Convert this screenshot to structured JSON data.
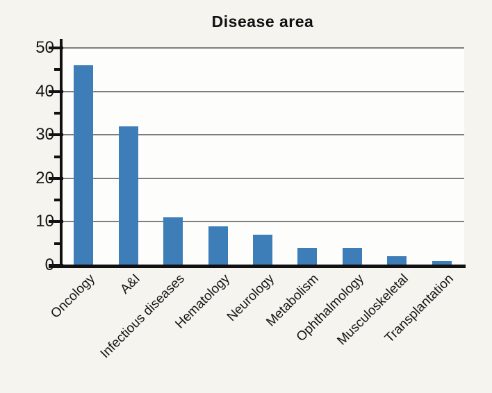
{
  "figure": {
    "background_color": "#f5f4ef",
    "plot_background_color": "#fdfdfb",
    "bar_color": "#3d7eb8",
    "gridline_color": "#7e7e7e",
    "axis_color": "#111111"
  },
  "chart_data": {
    "type": "bar",
    "title": "Disease area",
    "categories": [
      "Oncology",
      "A&I",
      "Infectious diseases",
      "Hematology",
      "Neurology",
      "Metabolism",
      "Ophthalmology",
      "Musculoskeletal",
      "Transplantation"
    ],
    "values": [
      46,
      32,
      11,
      9,
      7,
      4,
      4,
      2,
      1
    ],
    "xlabel": "",
    "ylabel": "",
    "ylim": [
      0,
      50
    ],
    "yticks": [
      0,
      10,
      20,
      30,
      40,
      50
    ],
    "minor_yticks": [
      5,
      15,
      25,
      35,
      45
    ],
    "grid": "horizontal",
    "legend": "none",
    "xtick_rotation_degrees": 45
  }
}
